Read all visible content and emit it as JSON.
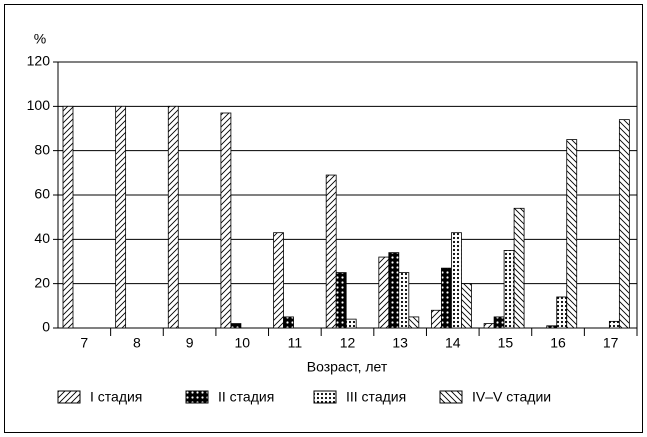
{
  "chart_data": {
    "type": "bar",
    "y_unit_label": "%",
    "x_label": "Возраст, лет",
    "categories": [
      "7",
      "8",
      "9",
      "10",
      "11",
      "12",
      "13",
      "14",
      "15",
      "16",
      "17"
    ],
    "series": [
      {
        "name": "I стадия",
        "color": "#000000",
        "values": [
          100,
          100,
          100,
          97,
          43,
          69,
          32,
          8,
          2,
          0,
          0
        ]
      },
      {
        "name": "II стадия",
        "color": "#000000",
        "values": [
          0,
          0,
          0,
          2,
          5,
          25,
          34,
          27,
          5,
          1,
          0
        ]
      },
      {
        "name": "III стадия",
        "color": "#000000",
        "values": [
          0,
          0,
          0,
          0,
          0,
          4,
          25,
          43,
          35,
          14,
          3
        ]
      },
      {
        "name": "IV–V стадии",
        "color": "#000000",
        "values": [
          0,
          0,
          0,
          0,
          0,
          0,
          5,
          20,
          54,
          85,
          94
        ]
      }
    ],
    "ylim": [
      0,
      120
    ],
    "yticks": [
      0,
      20,
      40,
      60,
      80,
      100,
      120
    ],
    "grid": true
  }
}
